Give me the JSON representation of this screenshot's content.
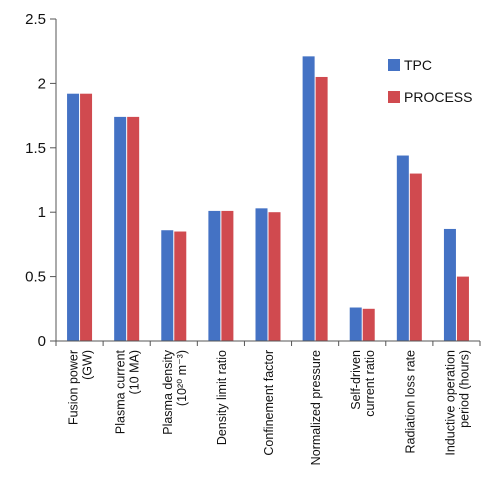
{
  "chart_data": {
    "type": "bar",
    "title": "",
    "xlabel": "",
    "ylabel": "",
    "ylim": [
      0,
      2.5
    ],
    "yticks": [
      "0",
      "0.5",
      "1",
      "1.5",
      "2",
      "2.5"
    ],
    "ytick_values": [
      0,
      0.5,
      1,
      1.5,
      2,
      2.5
    ],
    "grid": false,
    "legend_position": "top-right",
    "categories": [
      [
        "Fusion power",
        "(GW)"
      ],
      [
        "Plasma current",
        "(10 MA)"
      ],
      [
        "Plasma density",
        "(10²⁰ m⁻³)"
      ],
      [
        "Density limit ratio"
      ],
      [
        "Confinement factor"
      ],
      [
        "Normalized pressure"
      ],
      [
        "Self-driven",
        "current ratio"
      ],
      [
        "Radiation loss rate"
      ],
      [
        "Inductive operation",
        "period (hours)"
      ]
    ],
    "series": [
      {
        "name": "TPC",
        "color": "#4472C4",
        "values": [
          1.92,
          1.74,
          0.86,
          1.01,
          1.03,
          2.21,
          0.26,
          1.44,
          0.87
        ]
      },
      {
        "name": "PROCESS",
        "color": "#D04A4F",
        "values": [
          1.92,
          1.74,
          0.85,
          1.01,
          1.0,
          2.05,
          0.25,
          1.3,
          0.5
        ]
      }
    ]
  }
}
